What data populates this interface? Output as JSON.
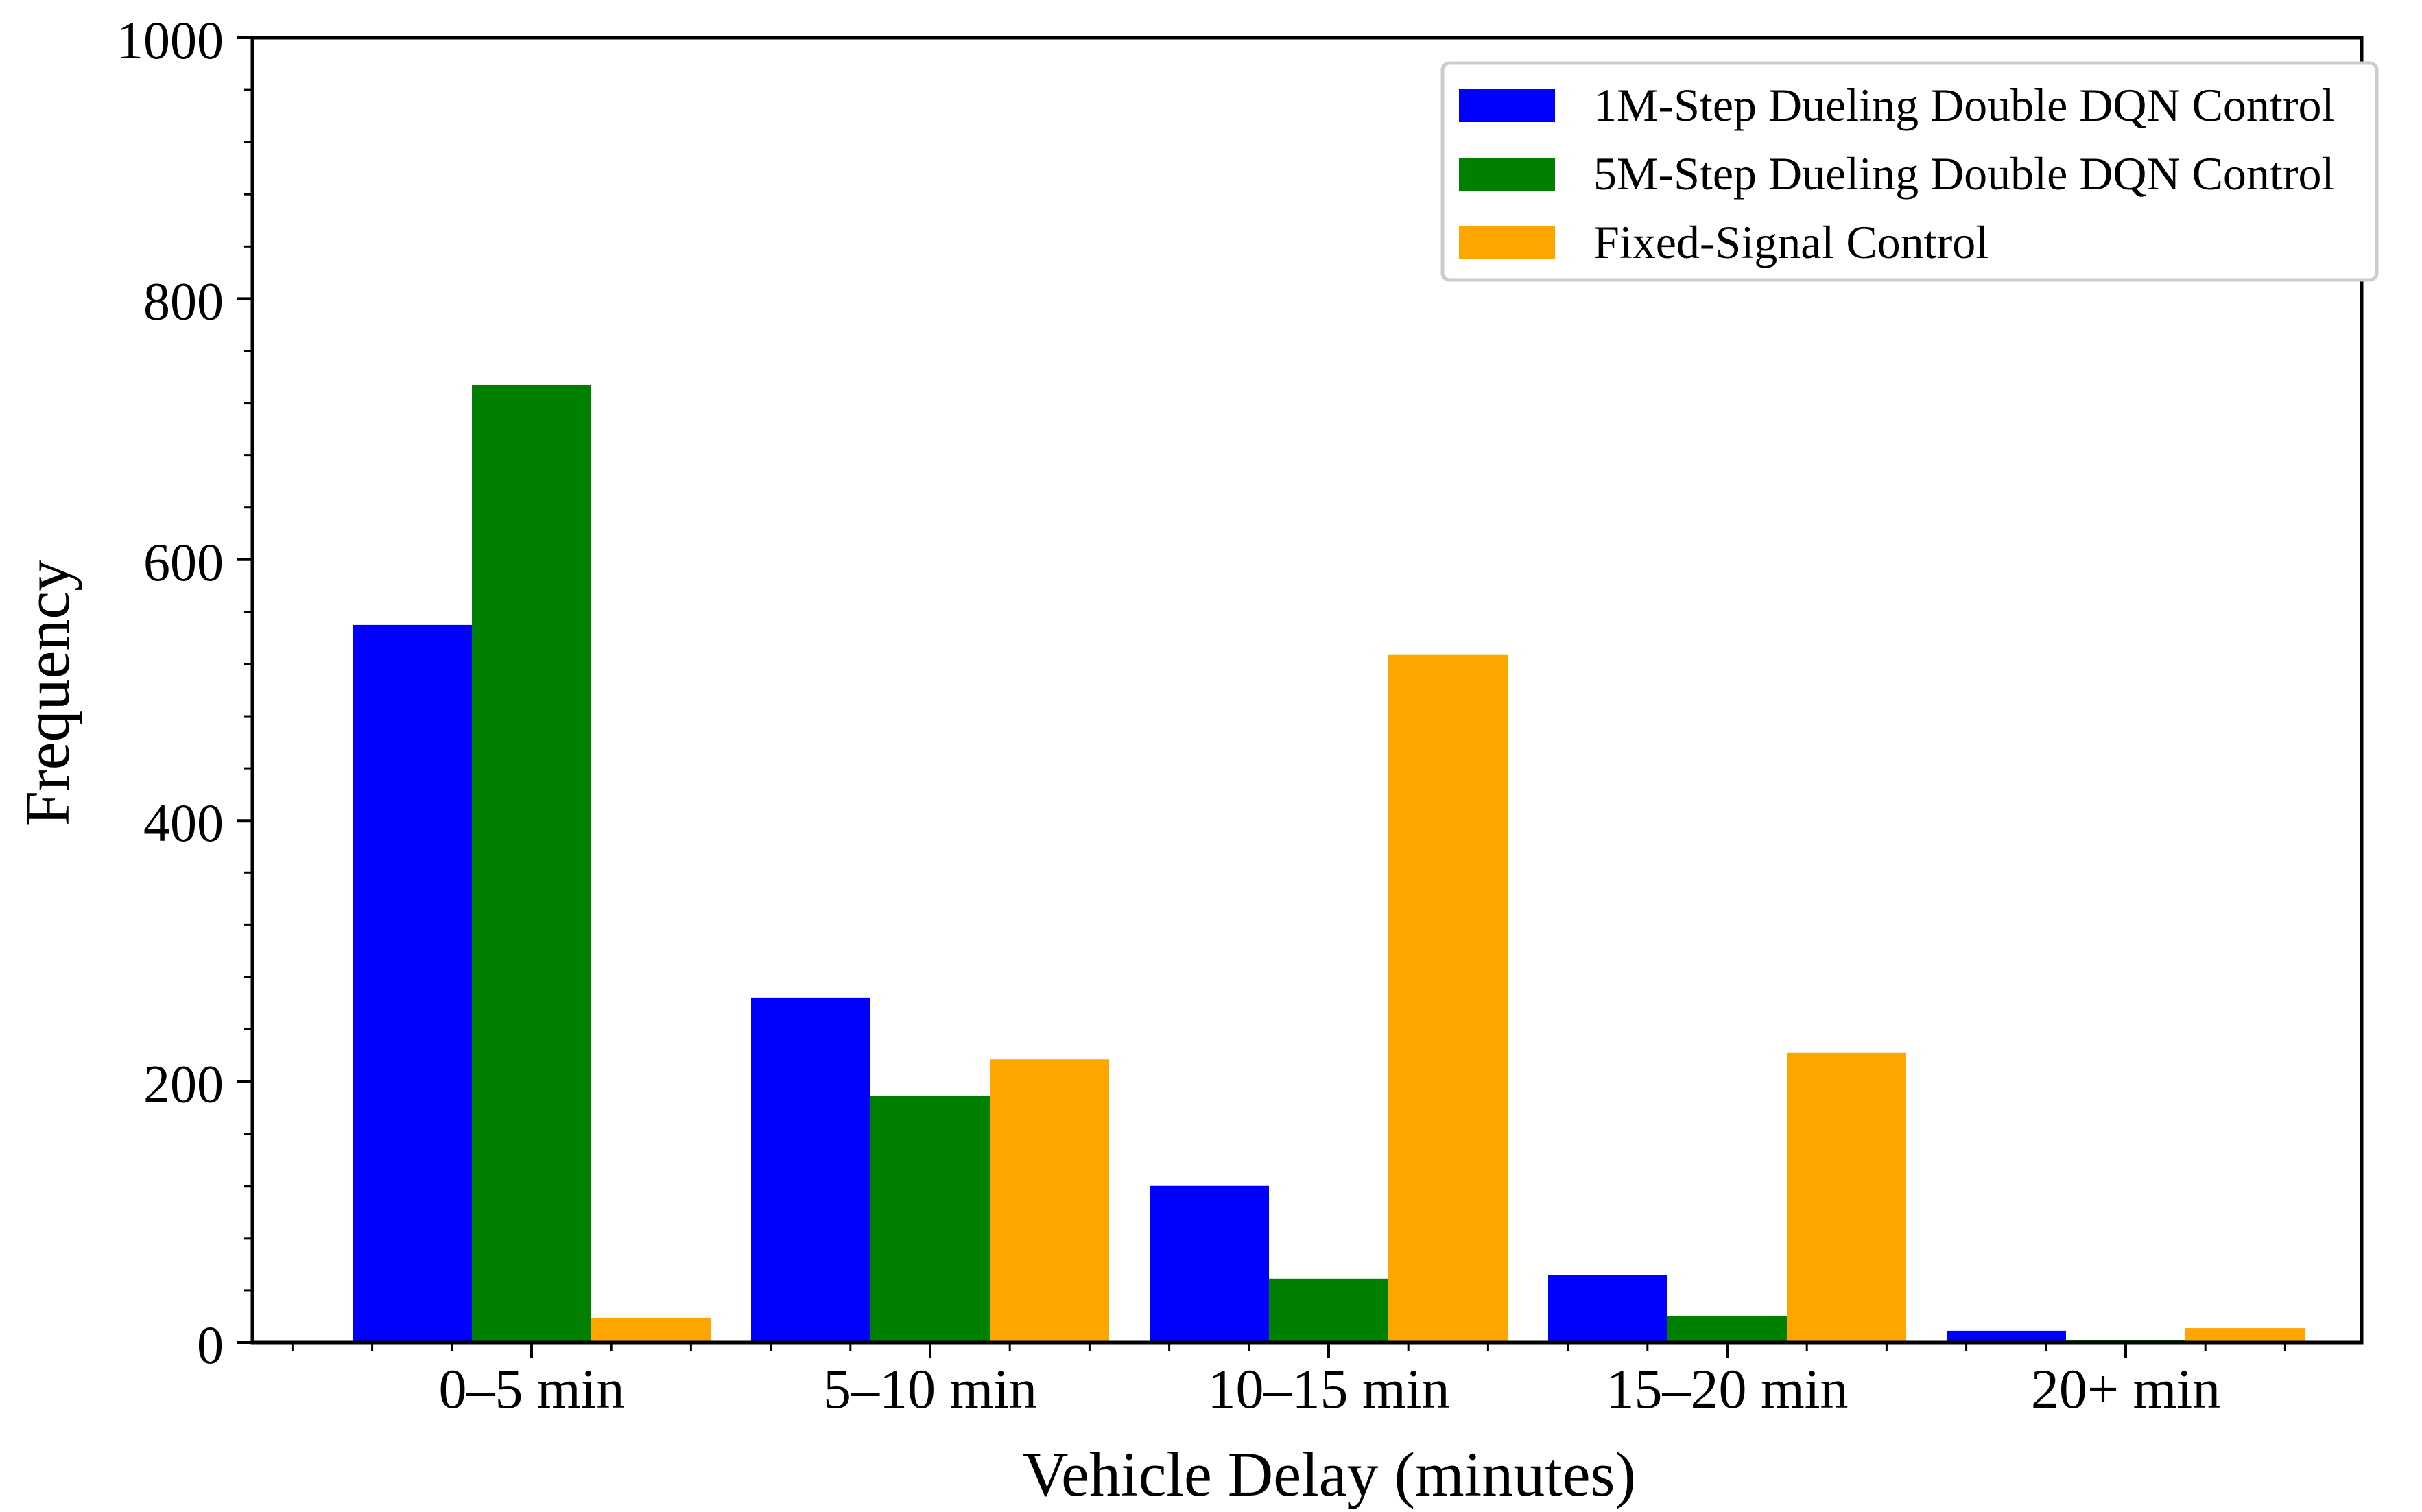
{
  "chart_data": {
    "type": "bar",
    "xlabel": "Vehicle Delay (minutes)",
    "ylabel": "Frequency",
    "ylim": [
      0,
      1000
    ],
    "yticks": [
      "0",
      "200",
      "400",
      "600",
      "800",
      "1000"
    ],
    "categories": [
      "0–5 min",
      "5–10 min",
      "10–15 min",
      "15–20 min",
      "20+ min"
    ],
    "series": [
      {
        "name": "1M-Step Dueling Double DQN Control",
        "color": "#0000ff",
        "values": [
          550,
          264,
          120,
          52,
          9
        ]
      },
      {
        "name": "5M-Step Dueling Double DQN Control",
        "color": "#008000",
        "values": [
          734,
          189,
          49,
          20,
          2
        ]
      },
      {
        "name": "Fixed-Signal Control",
        "color": "#ffa500",
        "values": [
          19,
          217,
          527,
          222,
          11
        ]
      }
    ],
    "legend_position": "top-right",
    "grid": false
  }
}
